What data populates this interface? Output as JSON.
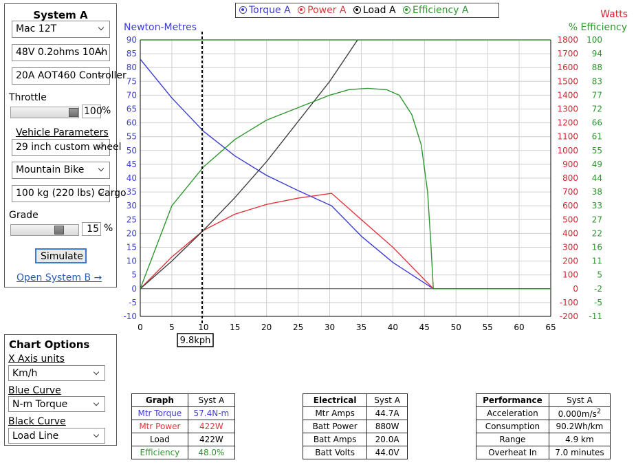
{
  "system_a": {
    "title": "System A",
    "motor": "Mac 12T",
    "battery": "48V 0.2ohms 10Ah",
    "controller": "20A AOT460 Controller",
    "throttle_label": "Throttle",
    "throttle_value": "100",
    "throttle_pct": "%",
    "throttle_fraction": 1.0,
    "vehicle_params_label": "Vehicle Parameters",
    "wheel": "29 inch custom wheel",
    "bike_type": "Mountain Bike",
    "weight": "100 kg (220 lbs) Cargo",
    "grade_label": "Grade",
    "grade_value": "15",
    "grade_pct": "%",
    "grade_fraction": 0.75,
    "simulate_label": "Simulate",
    "open_b_label": "Open System B →"
  },
  "chart_options": {
    "title": "Chart Options",
    "x_axis_label": "X Axis units",
    "x_axis_value": "Km/h",
    "blue_curve_label": "Blue Curve",
    "blue_curve_value": "N-m Torque",
    "black_curve_label": "Black Curve",
    "black_curve_value": "Load Line"
  },
  "legend": {
    "torque": "Torque A",
    "power": "Power A",
    "load": "Load A",
    "efficiency": "Efficiency A"
  },
  "colors": {
    "torque": "#3c3ccf",
    "power": "#e0363c",
    "load": "#404040",
    "efficiency": "#2d962d",
    "grid": "#cfcfcf",
    "axis_green": "#2d962d",
    "axis_red": "#d8202a"
  },
  "chart_data": {
    "type": "line",
    "xlim": [
      0,
      65
    ],
    "x_ticks": [
      "0",
      "5",
      "10",
      "15",
      "20",
      "25",
      "30",
      "35",
      "40",
      "45",
      "50",
      "55",
      "60",
      "65"
    ],
    "left_axis": {
      "label": "Newton-Metres",
      "ylim": [
        -10,
        90
      ],
      "ticks": [
        "-10",
        "-5",
        "0",
        "5",
        "10",
        "15",
        "20",
        "25",
        "30",
        "35",
        "40",
        "45",
        "50",
        "55",
        "60",
        "65",
        "70",
        "75",
        "80",
        "85",
        "90"
      ]
    },
    "right_red_axis": {
      "label": "Watts",
      "ylim": [
        -200,
        1800
      ],
      "ticks": [
        "-200",
        "-100",
        "0",
        "100",
        "200",
        "300",
        "400",
        "500",
        "600",
        "700",
        "800",
        "900",
        "1000",
        "1100",
        "1200",
        "1300",
        "1400",
        "1500",
        "1600",
        "1700",
        "1800"
      ]
    },
    "right_green_axis": {
      "label": "% Efficiency",
      "ticks": [
        "-11",
        "-5",
        "-2",
        "5",
        "11",
        "16",
        "22",
        "27",
        "33",
        "38",
        "44",
        "49",
        "55",
        "61",
        "66",
        "72",
        "77",
        "83",
        "88",
        "94",
        "100"
      ]
    },
    "series": [
      {
        "name": "Torque A",
        "axis": "left",
        "x": [
          0,
          5,
          10,
          15,
          20,
          25,
          30.3,
          35,
          40,
          46.4,
          65
        ],
        "y": [
          83,
          69,
          57,
          48,
          41,
          35.5,
          30,
          19,
          9.5,
          0,
          0
        ]
      },
      {
        "name": "Power A",
        "axis": "watts",
        "x": [
          0,
          5,
          10,
          15,
          20,
          25,
          30.3,
          35,
          40,
          46.4,
          65
        ],
        "y": [
          0,
          230,
          422,
          540,
          610,
          655,
          690,
          500,
          300,
          0,
          0
        ]
      },
      {
        "name": "Load A",
        "axis": "watts",
        "x": [
          0,
          5,
          10,
          15,
          20,
          25,
          30,
          35.3
        ],
        "y": [
          0,
          200,
          422,
          660,
          920,
          1210,
          1500,
          1860
        ]
      },
      {
        "name": "Efficiency A",
        "axis": "left",
        "x": [
          0,
          5,
          10,
          15,
          20,
          25,
          30,
          33,
          36,
          39,
          41,
          43,
          44.5,
          45.5,
          46,
          46.4,
          65
        ],
        "y": [
          0,
          30,
          44,
          54,
          61,
          65.5,
          70,
          72,
          72.5,
          72,
          70,
          63,
          52,
          35,
          17,
          0,
          0
        ]
      }
    ],
    "marker": {
      "x": 9.8,
      "label": "9.8kph"
    }
  },
  "graph_table": {
    "header": "Graph",
    "col": "Syst A",
    "rows": [
      {
        "label": "Mtr Torque",
        "value": "57.4N-m",
        "color": "#3c3ccf"
      },
      {
        "label": "Mtr Power",
        "value": "422W",
        "color": "#e0363c"
      },
      {
        "label": "Load",
        "value": "422W",
        "color": "#000000"
      },
      {
        "label": "Efficiency",
        "value": "48.0%",
        "color": "#2d962d"
      }
    ]
  },
  "electrical_table": {
    "header": "Electrical",
    "col": "Syst A",
    "rows": [
      {
        "label": "Mtr Amps",
        "value": "44.7A"
      },
      {
        "label": "Batt Power",
        "value": "880W"
      },
      {
        "label": "Batt Amps",
        "value": "20.0A"
      },
      {
        "label": "Batt Volts",
        "value": "44.0V"
      }
    ]
  },
  "performance_table": {
    "header": "Performance",
    "col": "Syst A",
    "rows": [
      {
        "label": "Acceleration",
        "value": "0.000m/s",
        "sup": "2"
      },
      {
        "label": "Consumption",
        "value": "90.2Wh/km"
      },
      {
        "label": "Range",
        "value": "4.9 km"
      },
      {
        "label": "Overheat In",
        "value": "7.0 minutes"
      }
    ]
  }
}
